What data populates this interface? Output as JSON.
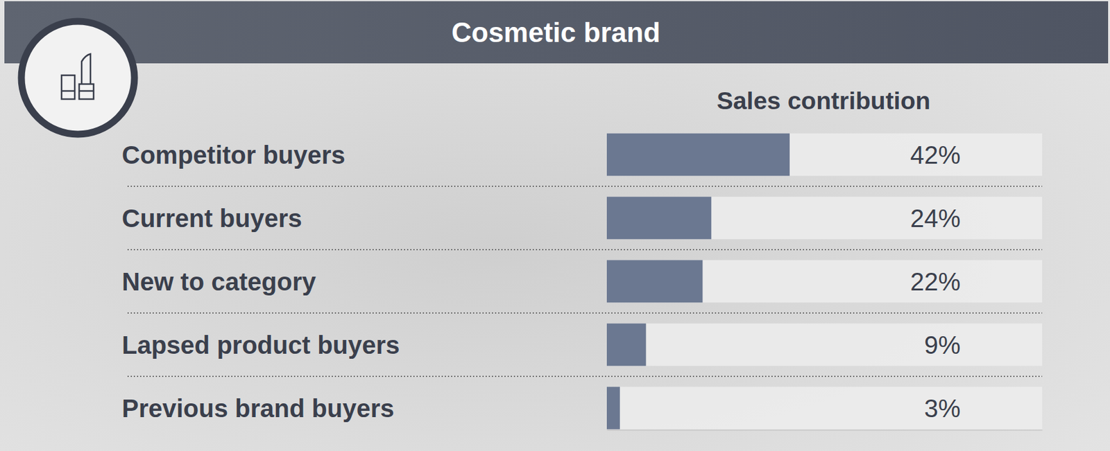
{
  "chart_data": {
    "type": "bar",
    "title": "Cosmetic brand",
    "subtitle": "Sales contribution",
    "orientation": "horizontal",
    "categories": [
      "Competitor buyers",
      "Current buyers",
      "New to category",
      "Lapsed product buyers",
      "Previous brand buyers"
    ],
    "values": [
      42,
      24,
      22,
      9,
      3
    ],
    "value_labels": [
      "42%",
      "24%",
      "22%",
      "9%",
      "3%"
    ],
    "color": "#6b7891",
    "xlim": [
      0,
      100
    ],
    "data_labels": true,
    "tick_labels": false
  }
}
